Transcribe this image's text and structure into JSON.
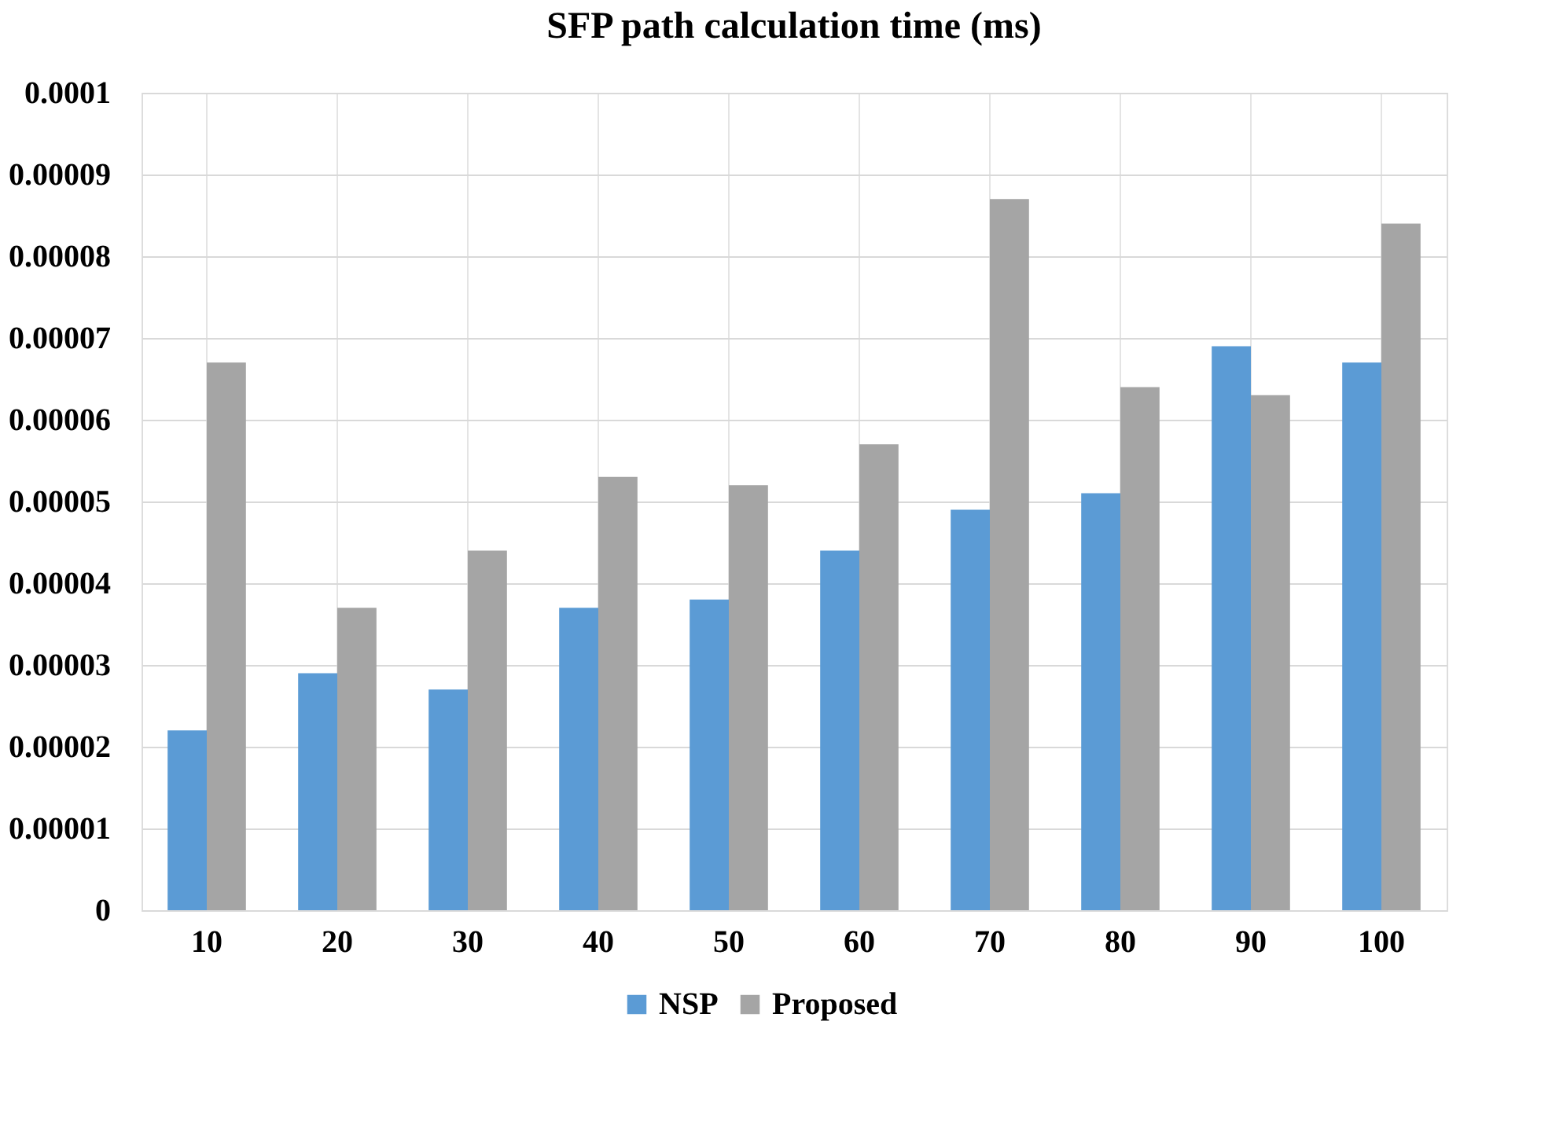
{
  "chart_data": {
    "type": "bar",
    "title": "SFP path calculation time (ms)",
    "categories": [
      "10",
      "20",
      "30",
      "40",
      "50",
      "60",
      "70",
      "80",
      "90",
      "100"
    ],
    "series": [
      {
        "name": "NSP",
        "color": "#5b9bd5",
        "values": [
          2.2e-05,
          2.9e-05,
          2.7e-05,
          3.7e-05,
          3.8e-05,
          4.4e-05,
          4.9e-05,
          5.1e-05,
          6.9e-05,
          6.7e-05
        ]
      },
      {
        "name": "Proposed",
        "color": "#a5a5a5",
        "values": [
          6.7e-05,
          3.7e-05,
          4.4e-05,
          5.3e-05,
          5.2e-05,
          5.7e-05,
          8.7e-05,
          6.4e-05,
          6.3e-05,
          8.4e-05
        ]
      }
    ],
    "ylim": [
      0,
      0.0001
    ],
    "yticks": [
      0,
      {
        "value": 1e-05,
        "label": "0.00001"
      },
      {
        "value": 2e-05,
        "label": "0.00002"
      },
      {
        "value": 3e-05,
        "label": "0.00003"
      },
      {
        "value": 4e-05,
        "label": "0.00004"
      },
      {
        "value": 5e-05,
        "label": "0.00005"
      },
      {
        "value": 6e-05,
        "label": "0.00006"
      },
      {
        "value": 7e-05,
        "label": "0.00007"
      },
      {
        "value": 8e-05,
        "label": "0.00008"
      },
      {
        "value": 9e-05,
        "label": "0.00009"
      },
      0.0001
    ],
    "grid": true,
    "legend": "bottom"
  }
}
